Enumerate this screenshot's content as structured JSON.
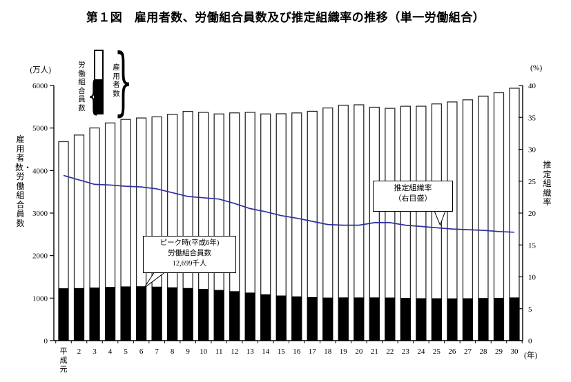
{
  "title": "第１図　雇用者数、労働組合員数及び推定組織率の推移（単一労働組合）",
  "legend": {
    "union_label": "労働組合員数",
    "employees_label": "雇用者数",
    "brace_left": "{",
    "brace_right": "}"
  },
  "axes": {
    "left_unit": "(万人)",
    "right_unit": "(%)",
    "x_unit": "(年)",
    "left_title": "雇用者数・労働組合員数",
    "right_title": "推定組織率",
    "left_ticks": [
      0,
      1000,
      2000,
      3000,
      4000,
      5000,
      6000
    ],
    "right_ticks": [
      0,
      5,
      10,
      15,
      20,
      25,
      30,
      35,
      40
    ]
  },
  "annotations": {
    "peak": {
      "line1": "ピーク時(平成6年)",
      "line2": "労働組合員数",
      "line3": "12,699千人",
      "points_to_category": "6"
    },
    "rate": {
      "line1": "推定組織率",
      "line2": "（右目盛）"
    }
  },
  "chart_data": {
    "type": "bar",
    "title": "雇用者数、労働組合員数及び推定組織率の推移（単一労働組合）",
    "categories": [
      "平成元",
      "2",
      "3",
      "4",
      "5",
      "6",
      "7",
      "8",
      "9",
      "10",
      "11",
      "12",
      "13",
      "14",
      "15",
      "16",
      "17",
      "18",
      "19",
      "20",
      "21",
      "22",
      "23",
      "24",
      "25",
      "26",
      "27",
      "28",
      "29",
      "30"
    ],
    "xlabel": "年",
    "ylabel": "雇用者数・労働組合員数 (万人)",
    "y2label": "推定組織率 (%)",
    "left_axis_range": [
      0,
      6000
    ],
    "right_axis_range": [
      0,
      40
    ],
    "grid": false,
    "series": [
      {
        "name": "雇用者数",
        "type": "bar",
        "axis": "left",
        "unit": "万人",
        "values": [
          4679,
          4835,
          5002,
          5119,
          5202,
          5236,
          5263,
          5322,
          5391,
          5368,
          5331,
          5356,
          5369,
          5331,
          5335,
          5355,
          5393,
          5472,
          5537,
          5546,
          5489,
          5463,
          5512,
          5513,
          5567,
          5613,
          5663,
          5750,
          5830,
          5936
        ]
      },
      {
        "name": "労働組合員数",
        "type": "bar",
        "axis": "left",
        "unit": "万人",
        "values": [
          1223,
          1227,
          1240,
          1254,
          1266,
          1270,
          1261,
          1245,
          1229,
          1209,
          1183,
          1154,
          1121,
          1080,
          1053,
          1031,
          1014,
          1004,
          1008,
          1007,
          1008,
          1005,
          996,
          989,
          988,
          985,
          988,
          994,
          998,
          1007
        ]
      },
      {
        "name": "推定組織率",
        "type": "line",
        "axis": "right",
        "unit": "%",
        "values": [
          25.9,
          25.2,
          24.5,
          24.4,
          24.2,
          24.1,
          23.8,
          23.2,
          22.6,
          22.4,
          22.2,
          21.5,
          20.7,
          20.2,
          19.6,
          19.2,
          18.7,
          18.2,
          18.1,
          18.1,
          18.5,
          18.5,
          18.1,
          17.9,
          17.7,
          17.5,
          17.4,
          17.3,
          17.1,
          17.0
        ]
      }
    ],
    "colors": {
      "line": "#2d2f9e",
      "bar_fill": "#ffffff",
      "bar_border": "#2a2a2a",
      "union_fill": "#000000",
      "axis": "#000000"
    }
  }
}
